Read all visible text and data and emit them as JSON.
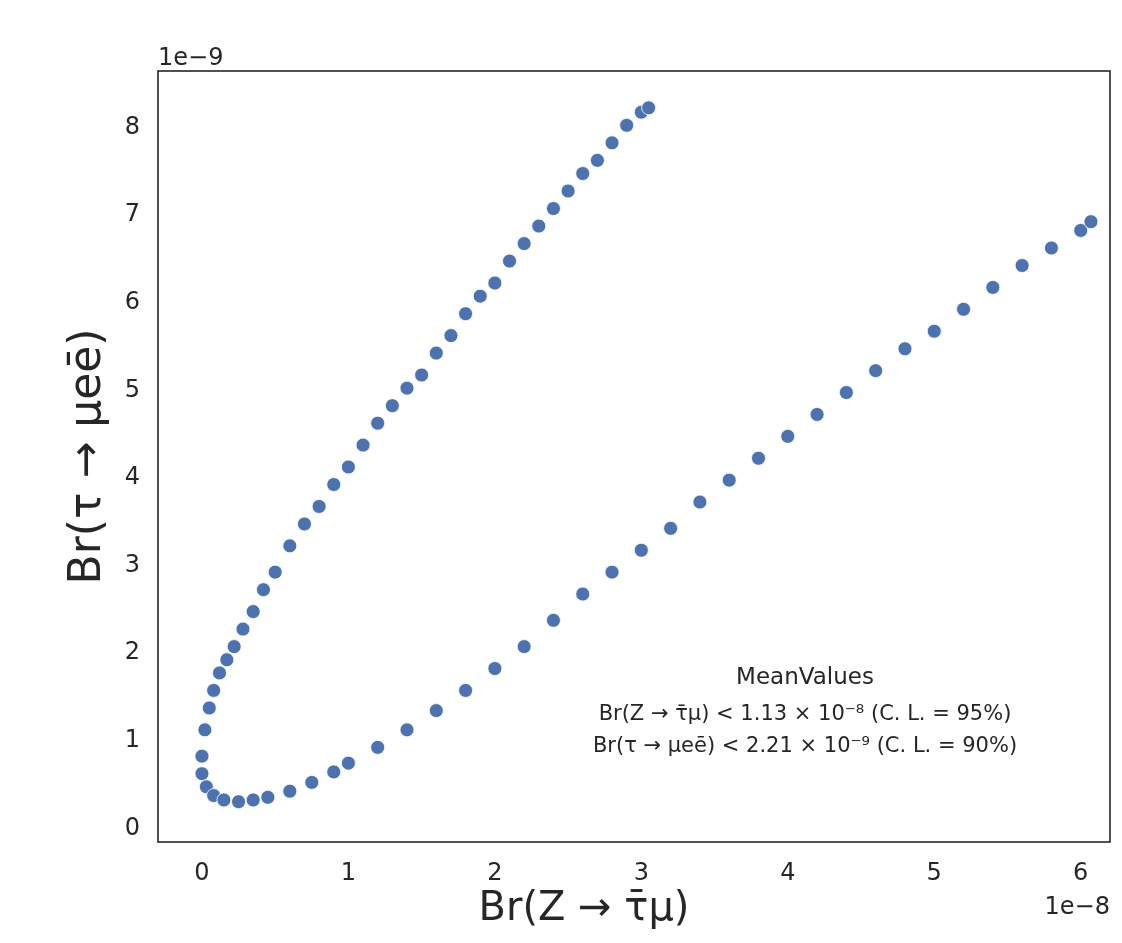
{
  "chart_data": {
    "type": "scatter",
    "xlabel": "Br(Z → τ̄μ)",
    "ylabel": "Br(τ → μeē)",
    "xlim": [
      -0.3,
      6.2
    ],
    "ylim": [
      -0.18,
      8.62
    ],
    "xticks": [
      0,
      1,
      2,
      3,
      4,
      5,
      6
    ],
    "yticks": [
      0,
      1,
      2,
      3,
      4,
      5,
      6,
      7,
      8
    ],
    "grid": false,
    "marker": "circle",
    "annotations": [
      "1e−9",
      "1e−8",
      "MeanValues",
      "Br(Z → τ̄μ) < 1.13 × 10⁻⁸ (C. L. = 95%)",
      "Br(τ → μeē) < 2.21 × 10⁻⁹ (C. L. = 90%)"
    ],
    "series": [
      {
        "color": "#4c72b0",
        "x": [
          0.0,
          0.02,
          0.05,
          0.08,
          0.12,
          0.17,
          0.22,
          0.28,
          0.35,
          0.42,
          0.5,
          0.6,
          0.7,
          0.8,
          0.9,
          1.0,
          1.1,
          1.2,
          1.3,
          1.4,
          1.5,
          1.6,
          1.7,
          1.8,
          1.9,
          2.0,
          2.1,
          2.2,
          2.3,
          2.4,
          2.5,
          2.6,
          2.7,
          2.8,
          2.9,
          3.0,
          3.05
        ],
        "values": [
          0.8,
          1.1,
          1.35,
          1.55,
          1.75,
          1.9,
          2.05,
          2.25,
          2.45,
          2.7,
          2.9,
          3.2,
          3.45,
          3.65,
          3.9,
          4.1,
          4.35,
          4.6,
          4.8,
          5.0,
          5.15,
          5.4,
          5.6,
          5.85,
          6.05,
          6.2,
          6.45,
          6.65,
          6.85,
          7.05,
          7.25,
          7.45,
          7.6,
          7.8,
          8.0,
          8.15,
          8.2
        ]
      },
      {
        "color": "#4c72b0",
        "x": [
          0.0,
          0.03,
          0.08,
          0.15,
          0.25,
          0.35,
          0.45,
          0.6,
          0.75,
          0.9,
          1.0,
          1.2,
          1.4,
          1.6,
          1.8,
          2.0,
          2.2,
          2.4,
          2.6,
          2.8,
          3.0,
          3.2,
          3.4,
          3.6,
          3.8,
          4.0,
          4.2,
          4.4,
          4.6,
          4.8,
          5.0,
          5.2,
          5.4,
          5.6,
          5.8,
          6.0,
          6.07
        ],
        "values": [
          0.6,
          0.45,
          0.35,
          0.3,
          0.28,
          0.3,
          0.33,
          0.4,
          0.5,
          0.62,
          0.72,
          0.9,
          1.1,
          1.32,
          1.55,
          1.8,
          2.05,
          2.35,
          2.65,
          2.9,
          3.15,
          3.4,
          3.7,
          3.95,
          4.2,
          4.45,
          4.7,
          4.95,
          5.2,
          5.45,
          5.65,
          5.9,
          6.15,
          6.4,
          6.6,
          6.8,
          6.9
        ]
      }
    ]
  }
}
